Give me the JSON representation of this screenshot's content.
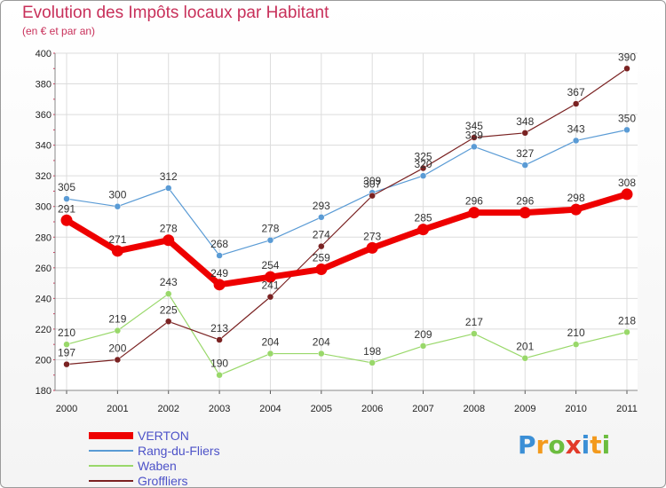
{
  "chart_data": {
    "type": "line",
    "title": "Evolution des Impôts locaux par Habitant",
    "subtitle": "(en € et par an)",
    "categories": [
      "2000",
      "2001",
      "2002",
      "2003",
      "2004",
      "2005",
      "2006",
      "2007",
      "2008",
      "2009",
      "2010",
      "2011"
    ],
    "ylim": [
      180,
      400
    ],
    "yticks": [
      180,
      200,
      220,
      240,
      260,
      280,
      300,
      320,
      340,
      360,
      380,
      400
    ],
    "grid": true,
    "legend_position": "bottom-left",
    "series": [
      {
        "name": "VERTON",
        "color": "#ee0000",
        "values": [
          291,
          271,
          278,
          249,
          254,
          259,
          273,
          285,
          296,
          296,
          298,
          308
        ],
        "labels": [
          "291",
          "271",
          "278",
          "249",
          "254",
          "259",
          "273",
          "285",
          "296",
          "296",
          "298",
          "308"
        ]
      },
      {
        "name": "Rang-du-Fliers",
        "color": "#5a9bd5",
        "values": [
          305,
          300,
          312,
          268,
          278,
          293,
          309,
          320,
          339,
          327,
          343,
          350
        ],
        "labels": [
          "305",
          "300",
          "312",
          "268",
          "278",
          "293",
          "309",
          "320",
          "339",
          "327",
          "343",
          "350"
        ]
      },
      {
        "name": "Waben",
        "color": "#99d86a",
        "values": [
          210,
          219,
          243,
          190,
          204,
          204,
          198,
          209,
          217,
          201,
          210,
          218
        ],
        "labels": [
          "210",
          "219",
          "243",
          "190",
          "204",
          "204",
          "198",
          "209",
          "217",
          "201",
          "210",
          "218"
        ]
      },
      {
        "name": "Groffliers",
        "color": "#7a2222",
        "values": [
          197,
          200,
          225,
          213,
          241,
          274,
          307,
          325,
          345,
          348,
          367,
          390
        ],
        "labels": [
          "197",
          "200",
          "225",
          "213",
          "241",
          "274",
          "307",
          "325",
          "345",
          "348",
          "367",
          "390"
        ]
      }
    ]
  },
  "logo": {
    "letters": [
      "P",
      "r",
      "o",
      "x",
      "i",
      "t",
      "i"
    ],
    "colors": [
      "#3b8fd6",
      "#f39a1d",
      "#6cbd3f",
      "#e23a2a",
      "#3b8fd6",
      "#f39a1d",
      "#6cbd3f"
    ]
  }
}
